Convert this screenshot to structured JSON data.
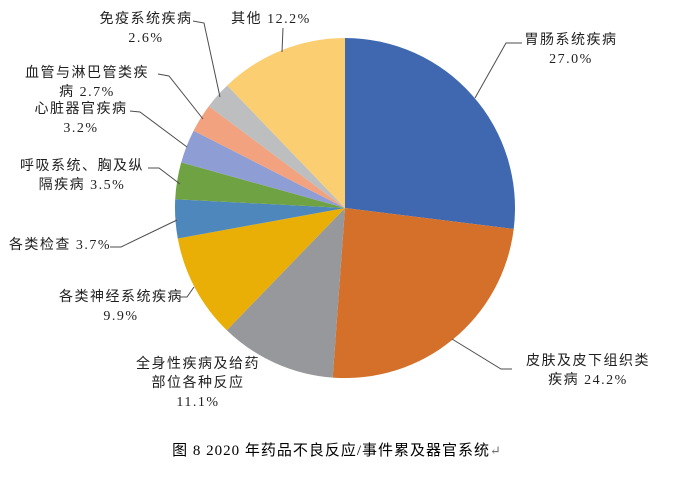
{
  "figure": {
    "caption": "图 8  2020 年药品不良反应/事件累及器官系统",
    "return_mark": "↵"
  },
  "chart_data": {
    "type": "pie",
    "title": "2020 年药品不良反应/事件累及器官系统",
    "unit": "%",
    "direction": "clockwise",
    "start_angle": "12-o'clock",
    "legend_position": "none",
    "label_style": "outside-with-leader-lines",
    "categories": [
      "胃肠系统疾病",
      "皮肤及皮下组织类疾病",
      "全身性疾病及给药部位各种反应",
      "各类神经系统疾病",
      "各类检查",
      "呼吸系统、胸及纵隔疾病",
      "心脏器官疾病",
      "血管与淋巴管类疾病",
      "免疫系统疾病",
      "其他"
    ],
    "values": [
      27.0,
      24.2,
      11.1,
      9.9,
      3.7,
      3.5,
      3.2,
      2.7,
      2.6,
      12.2
    ],
    "slices": [
      {
        "name": "胃肠系统疾病",
        "value": 27.0,
        "color": "#4068B0",
        "label_lines": [
          "胃肠系统疾病",
          "27.0%"
        ]
      },
      {
        "name": "皮肤及皮下组织类疾病",
        "value": 24.2,
        "color": "#D4702A",
        "label_lines": [
          "皮肤及皮下组织类",
          "疾病 24.2%"
        ]
      },
      {
        "name": "全身性疾病及给药部位各种反应",
        "value": 11.1,
        "color": "#97989B",
        "label_lines": [
          "全身性疾病及给药",
          "部位各种反应",
          "11.1%"
        ]
      },
      {
        "name": "各类神经系统疾病",
        "value": 9.9,
        "color": "#E9AF06",
        "label_lines": [
          "各类神经系统疾病",
          "9.9%"
        ]
      },
      {
        "name": "各类检查",
        "value": 3.7,
        "color": "#4E87BB",
        "label_lines": [
          "各类检查 3.7%"
        ]
      },
      {
        "name": "呼吸系统、胸及纵隔疾病",
        "value": 3.5,
        "color": "#6FA243",
        "label_lines": [
          "呼吸系统、胸及纵",
          "隔疾病 3.5%"
        ]
      },
      {
        "name": "心脏器官疾病",
        "value": 3.2,
        "color": "#8E9DD3",
        "label_lines": [
          "心脏器官疾病",
          "3.2%"
        ]
      },
      {
        "name": "血管与淋巴管类疾病",
        "value": 2.7,
        "color": "#F2A27E",
        "label_lines": [
          "血管与淋巴管类疾",
          "病 2.7%"
        ]
      },
      {
        "name": "免疫系统疾病",
        "value": 2.6,
        "color": "#BCBEC0",
        "label_lines": [
          "免疫系统疾病",
          "2.6%"
        ]
      },
      {
        "name": "其他",
        "value": 12.2,
        "color": "#FBCE72",
        "label_lines": [
          "其他 12.2%"
        ]
      }
    ]
  }
}
